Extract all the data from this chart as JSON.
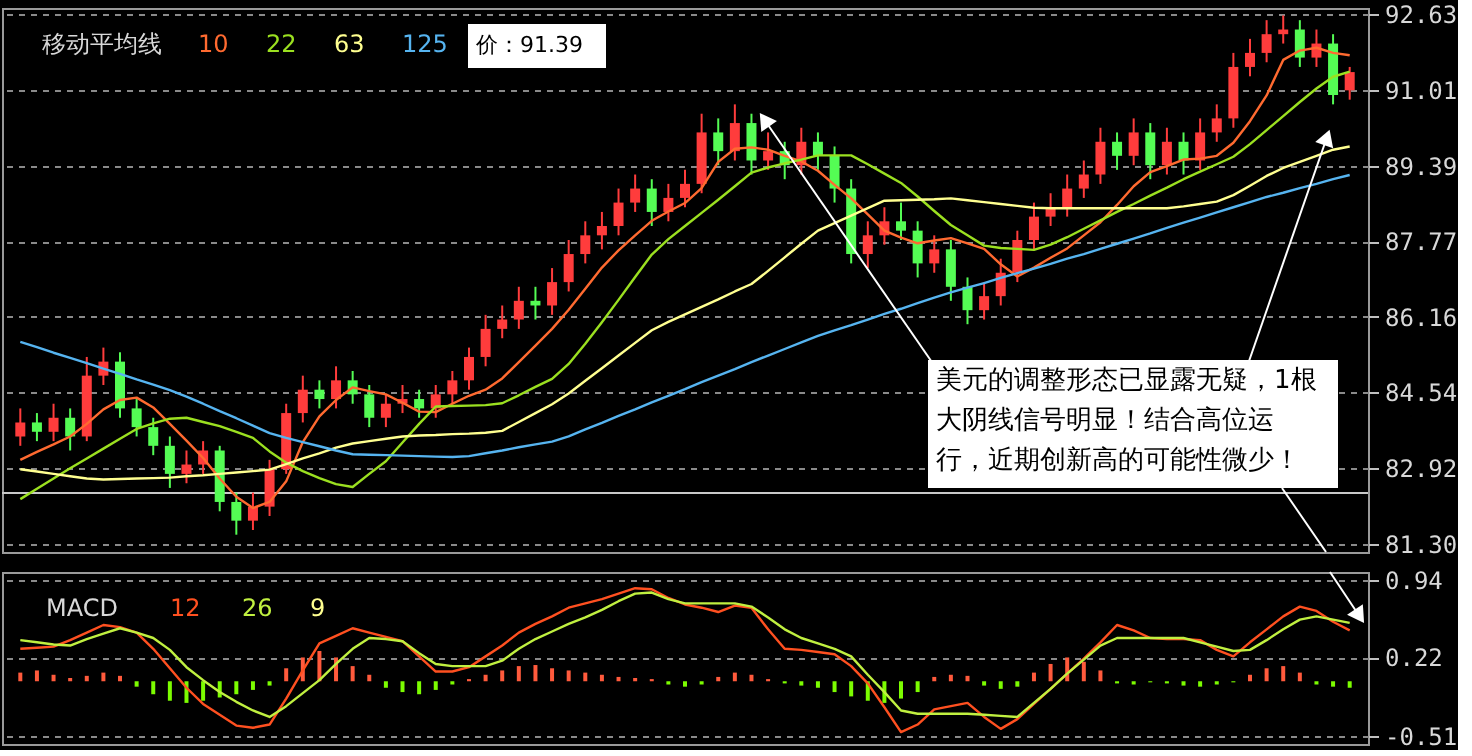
{
  "chart_data": [
    {
      "type": "candlestick",
      "legend_title": "移动平均线",
      "grid": "y",
      "tick_labels": "y",
      "annotations": [
        "价：91.39",
        "美元的调整形态已显露无疑，1根大阴线信号明显！结合高位运行，近期创新高的可能性微少！"
      ],
      "categories": [
        null,
        null,
        null,
        null,
        null,
        null,
        null,
        null,
        null,
        null,
        null,
        null,
        null,
        null,
        null,
        null,
        null,
        null,
        null,
        null,
        null,
        null,
        null,
        null,
        null,
        null,
        null,
        null,
        null,
        null,
        null,
        null,
        null,
        null,
        null,
        null,
        null,
        null,
        null,
        null,
        null,
        null,
        null,
        null,
        null,
        null,
        null,
        null,
        null,
        null,
        null,
        null,
        null,
        null,
        null,
        null,
        null,
        null,
        null,
        null,
        null,
        null,
        null,
        null,
        null,
        null,
        null,
        null,
        null,
        null,
        null,
        null,
        null,
        null,
        null,
        null,
        null,
        null,
        null,
        null,
        null
      ],
      "ylim": [
        81.13,
        92.76
      ],
      "yticks": [
        {
          "value": 81.3,
          "label": "81.30"
        },
        82.92,
        84.54,
        86.16,
        87.77,
        89.39,
        91.01,
        92.63
      ],
      "ref_lines": [
        {
          "axis": "y",
          "value": 82.39,
          "color": "#c8c8c8"
        }
      ],
      "ohlc": [
        [
          83.6,
          84.2,
          83.4,
          83.9
        ],
        [
          83.9,
          84.1,
          83.5,
          83.7
        ],
        [
          83.7,
          84.3,
          83.5,
          84.0
        ],
        [
          84.0,
          84.2,
          83.3,
          83.6
        ],
        [
          83.6,
          85.3,
          83.5,
          84.9
        ],
        [
          84.9,
          85.5,
          84.7,
          85.2
        ],
        [
          85.2,
          85.4,
          84.0,
          84.2
        ],
        [
          84.2,
          84.4,
          83.6,
          83.8
        ],
        [
          83.8,
          84.0,
          83.2,
          83.4
        ],
        [
          83.4,
          83.6,
          82.5,
          82.8
        ],
        [
          82.8,
          83.3,
          82.6,
          83.0
        ],
        [
          83.0,
          83.5,
          82.8,
          83.3
        ],
        [
          83.3,
          83.4,
          82.0,
          82.2
        ],
        [
          82.2,
          82.4,
          81.5,
          81.8
        ],
        [
          81.8,
          82.4,
          81.6,
          82.1
        ],
        [
          82.1,
          83.1,
          81.9,
          82.9
        ],
        [
          82.9,
          84.3,
          82.8,
          84.1
        ],
        [
          84.1,
          84.9,
          83.9,
          84.6
        ],
        [
          84.6,
          84.8,
          84.2,
          84.4
        ],
        [
          84.4,
          85.1,
          84.2,
          84.8
        ],
        [
          84.8,
          85.0,
          84.3,
          84.5
        ],
        [
          84.5,
          84.7,
          83.8,
          84.0
        ],
        [
          84.0,
          84.5,
          83.8,
          84.3
        ],
        [
          84.3,
          84.7,
          84.1,
          84.4
        ],
        [
          84.4,
          84.6,
          84.0,
          84.2
        ],
        [
          84.2,
          84.7,
          84.0,
          84.5
        ],
        [
          84.5,
          85.0,
          84.3,
          84.8
        ],
        [
          84.8,
          85.5,
          84.6,
          85.3
        ],
        [
          85.3,
          86.2,
          85.1,
          85.9
        ],
        [
          85.9,
          86.4,
          85.7,
          86.1
        ],
        [
          86.1,
          86.8,
          85.9,
          86.5
        ],
        [
          86.5,
          86.8,
          86.1,
          86.4
        ],
        [
          86.4,
          87.2,
          86.2,
          86.9
        ],
        [
          86.9,
          87.8,
          86.7,
          87.5
        ],
        [
          87.5,
          88.2,
          87.3,
          87.9
        ],
        [
          87.9,
          88.4,
          87.6,
          88.1
        ],
        [
          88.1,
          88.9,
          87.9,
          88.6
        ],
        [
          88.6,
          89.2,
          88.4,
          88.9
        ],
        [
          88.9,
          89.1,
          88.1,
          88.4
        ],
        [
          88.4,
          89.0,
          88.2,
          88.7
        ],
        [
          88.7,
          89.3,
          88.5,
          89.0
        ],
        [
          89.0,
          90.5,
          88.8,
          90.1
        ],
        [
          90.1,
          90.4,
          89.4,
          89.7
        ],
        [
          89.7,
          90.7,
          89.5,
          90.3
        ],
        [
          90.3,
          90.5,
          89.2,
          89.5
        ],
        [
          89.5,
          90.1,
          89.3,
          89.7
        ],
        [
          89.7,
          89.9,
          89.1,
          89.4
        ],
        [
          89.4,
          90.2,
          89.2,
          89.9
        ],
        [
          89.9,
          90.1,
          89.3,
          89.6
        ],
        [
          89.6,
          89.8,
          88.6,
          88.9
        ],
        [
          88.9,
          89.1,
          87.3,
          87.5
        ],
        [
          87.5,
          88.2,
          87.2,
          87.9
        ],
        [
          87.9,
          88.5,
          87.7,
          88.2
        ],
        [
          88.2,
          88.6,
          87.8,
          88.0
        ],
        [
          88.0,
          88.2,
          87.0,
          87.3
        ],
        [
          87.3,
          87.9,
          87.1,
          87.6
        ],
        [
          87.6,
          87.8,
          86.5,
          86.8
        ],
        [
          86.8,
          87.0,
          86.0,
          86.3
        ],
        [
          86.3,
          86.9,
          86.1,
          86.6
        ],
        [
          86.6,
          87.4,
          86.4,
          87.1
        ],
        [
          87.1,
          88.0,
          86.9,
          87.8
        ],
        [
          87.8,
          88.6,
          87.6,
          88.3
        ],
        [
          88.3,
          88.8,
          88.1,
          88.5
        ],
        [
          88.5,
          89.2,
          88.3,
          88.9
        ],
        [
          88.9,
          89.5,
          88.7,
          89.2
        ],
        [
          89.2,
          90.2,
          89.0,
          89.9
        ],
        [
          89.9,
          90.1,
          89.3,
          89.6
        ],
        [
          89.6,
          90.4,
          89.4,
          90.1
        ],
        [
          90.1,
          90.3,
          89.1,
          89.4
        ],
        [
          89.4,
          90.2,
          89.2,
          89.9
        ],
        [
          89.9,
          90.1,
          89.2,
          89.5
        ],
        [
          89.5,
          90.4,
          89.3,
          90.1
        ],
        [
          90.1,
          90.7,
          89.9,
          90.4
        ],
        [
          90.4,
          91.8,
          90.2,
          91.5
        ],
        [
          91.5,
          92.1,
          91.3,
          91.8
        ],
        [
          91.8,
          92.5,
          91.6,
          92.2
        ],
        [
          92.2,
          92.6,
          92.0,
          92.3
        ],
        [
          92.3,
          92.5,
          91.5,
          91.7
        ],
        [
          91.7,
          92.3,
          91.5,
          92.0
        ],
        [
          92.0,
          92.2,
          90.7,
          90.9
        ],
        [
          91.0,
          91.5,
          90.8,
          91.39
        ]
      ],
      "colors": [
        "#ff3c3c",
        "#54fc54",
        "#ff3c3c",
        "#54fc54",
        "#ff3c3c",
        "#ff3c3c",
        "#54fc54",
        "#54fc54",
        "#54fc54",
        "#54fc54",
        "#ff3c3c",
        "#ff3c3c",
        "#54fc54",
        "#54fc54",
        "#ff3c3c",
        "#ff3c3c",
        "#ff3c3c",
        "#ff3c3c",
        "#54fc54",
        "#ff3c3c",
        "#54fc54",
        "#54fc54",
        "#ff3c3c",
        "#ff3c3c",
        "#54fc54",
        "#ff3c3c",
        "#ff3c3c",
        "#ff3c3c",
        "#ff3c3c",
        "#ff3c3c",
        "#ff3c3c",
        "#54fc54",
        "#ff3c3c",
        "#ff3c3c",
        "#ff3c3c",
        "#ff3c3c",
        "#ff3c3c",
        "#ff3c3c",
        "#54fc54",
        "#ff3c3c",
        "#ff3c3c",
        "#ff3c3c",
        "#54fc54",
        "#ff3c3c",
        "#54fc54",
        "#ff3c3c",
        "#54fc54",
        "#ff3c3c",
        "#54fc54",
        "#54fc54",
        "#54fc54",
        "#ff3c3c",
        "#ff3c3c",
        "#54fc54",
        "#54fc54",
        "#ff3c3c",
        "#54fc54",
        "#54fc54",
        "#ff3c3c",
        "#ff3c3c",
        "#ff3c3c",
        "#ff3c3c",
        "#ff3c3c",
        "#ff3c3c",
        "#ff3c3c",
        "#ff3c3c",
        "#54fc54",
        "#ff3c3c",
        "#54fc54",
        "#ff3c3c",
        "#54fc54",
        "#ff3c3c",
        "#ff3c3c",
        "#ff3c3c",
        "#ff3c3c",
        "#ff3c3c",
        "#ff3c3c",
        "#54fc54",
        "#ff3c3c",
        "#54fc54",
        "#ff3c3c"
      ],
      "series": [
        {
          "name": "10",
          "type": "line",
          "color": "#ff6a30",
          "values": [
            83.1,
            83.27,
            83.43,
            83.6,
            83.87,
            84.18,
            84.38,
            84.43,
            84.22,
            83.87,
            83.51,
            83.14,
            82.7,
            82.31,
            82.07,
            82.2,
            82.64,
            83.48,
            84.03,
            84.38,
            84.65,
            84.57,
            84.5,
            84.32,
            84.13,
            84.12,
            84.3,
            84.47,
            84.6,
            84.84,
            85.19,
            85.54,
            85.9,
            86.31,
            86.76,
            87.21,
            87.58,
            87.9,
            88.21,
            88.41,
            88.59,
            88.91,
            89.47,
            89.75,
            89.78,
            89.73,
            89.6,
            89.48,
            89.28,
            88.98,
            88.69,
            88.35,
            88.0,
            87.85,
            87.73,
            87.79,
            87.84,
            87.73,
            87.61,
            87.28,
            87.02,
            87.21,
            87.42,
            87.62,
            87.9,
            88.18,
            88.55,
            88.95,
            89.25,
            89.38,
            89.52,
            89.54,
            89.6,
            89.88,
            90.34,
            90.89,
            91.65,
            91.85,
            91.91,
            91.8,
            91.75
          ]
        },
        {
          "name": "22",
          "type": "line",
          "color": "#9be020",
          "values": [
            82.26,
            82.48,
            82.7,
            82.92,
            83.13,
            83.34,
            83.55,
            83.76,
            83.88,
            83.98,
            84.0,
            83.91,
            83.82,
            83.7,
            83.57,
            83.28,
            83.04,
            82.86,
            82.71,
            82.58,
            82.52,
            82.8,
            83.07,
            83.47,
            83.87,
            84.24,
            84.25,
            84.26,
            84.27,
            84.31,
            84.48,
            84.66,
            84.83,
            85.15,
            85.58,
            86.04,
            86.52,
            87.01,
            87.49,
            87.82,
            88.1,
            88.38,
            88.66,
            88.95,
            89.24,
            89.35,
            89.44,
            89.52,
            89.61,
            89.61,
            89.61,
            89.42,
            89.22,
            89.02,
            88.73,
            88.42,
            88.12,
            87.9,
            87.68,
            87.63,
            87.61,
            87.59,
            87.7,
            87.86,
            88.04,
            88.22,
            88.4,
            88.57,
            88.75,
            88.92,
            89.1,
            89.26,
            89.42,
            89.58,
            89.85,
            90.15,
            90.45,
            90.75,
            91.04,
            91.29,
            91.4
          ]
        },
        {
          "name": "63",
          "type": "line",
          "color": "#ffff90",
          "values": [
            82.9,
            82.85,
            82.8,
            82.75,
            82.7,
            82.68,
            82.69,
            82.7,
            82.71,
            82.72,
            82.75,
            82.77,
            82.8,
            82.83,
            82.86,
            82.89,
            83.01,
            83.13,
            83.24,
            83.36,
            83.45,
            83.5,
            83.55,
            83.6,
            83.62,
            83.63,
            83.65,
            83.66,
            83.68,
            83.72,
            83.91,
            84.1,
            84.29,
            84.52,
            84.79,
            85.06,
            85.33,
            85.6,
            85.87,
            86.05,
            86.21,
            86.37,
            86.53,
            86.7,
            86.86,
            87.14,
            87.43,
            87.72,
            88.0,
            88.16,
            88.32,
            88.48,
            88.64,
            88.65,
            88.66,
            88.67,
            88.69,
            88.65,
            88.61,
            88.57,
            88.53,
            88.49,
            88.48,
            88.48,
            88.48,
            88.48,
            88.48,
            88.48,
            88.48,
            88.48,
            88.52,
            88.57,
            88.62,
            88.76,
            88.96,
            89.17,
            89.34,
            89.47,
            89.6,
            89.73,
            89.8
          ]
        },
        {
          "name": "125",
          "type": "line",
          "color": "#56b4f0",
          "values": [
            85.62,
            85.51,
            85.39,
            85.28,
            85.17,
            85.05,
            84.94,
            84.82,
            84.71,
            84.59,
            84.45,
            84.3,
            84.14,
            83.99,
            83.83,
            83.67,
            83.57,
            83.48,
            83.39,
            83.3,
            83.22,
            83.21,
            83.2,
            83.19,
            83.18,
            83.17,
            83.16,
            83.18,
            83.24,
            83.3,
            83.37,
            83.43,
            83.49,
            83.6,
            83.75,
            83.89,
            84.04,
            84.18,
            84.33,
            84.47,
            84.61,
            84.76,
            84.9,
            85.04,
            85.19,
            85.33,
            85.47,
            85.61,
            85.75,
            85.87,
            85.98,
            86.1,
            86.22,
            86.33,
            86.45,
            86.57,
            86.68,
            86.78,
            86.88,
            86.99,
            87.09,
            87.19,
            87.29,
            87.4,
            87.5,
            87.61,
            87.72,
            87.83,
            87.94,
            88.06,
            88.17,
            88.28,
            88.39,
            88.5,
            88.61,
            88.72,
            88.81,
            88.91,
            89.0,
            89.1,
            89.19
          ]
        }
      ]
    },
    {
      "type": "line",
      "legend_title": "MACD",
      "grid": "y",
      "tick_labels": "y",
      "annotations": [
        "9"
      ],
      "categories": [
        null,
        null,
        null,
        null,
        null,
        null,
        null,
        null,
        null,
        null,
        null,
        null,
        null,
        null,
        null,
        null,
        null,
        null,
        null,
        null,
        null,
        null,
        null,
        null,
        null,
        null,
        null,
        null,
        null,
        null,
        null,
        null,
        null,
        null,
        null,
        null,
        null,
        null,
        null,
        null,
        null,
        null,
        null,
        null,
        null,
        null,
        null,
        null,
        null,
        null,
        null,
        null,
        null,
        null,
        null,
        null,
        null,
        null,
        null,
        null,
        null,
        null,
        null,
        null,
        null,
        null,
        null,
        null,
        null,
        null,
        null,
        null,
        null,
        null,
        null,
        null,
        null,
        null,
        null,
        null,
        null
      ],
      "ylim": [
        -0.58,
        1.01
      ],
      "yticks": [
        -0.51,
        0.22,
        0.94
      ],
      "series": [
        {
          "name": "12",
          "type": "line",
          "color": "#ff5020",
          "values": [
            0.3,
            0.31,
            0.32,
            0.38,
            0.45,
            0.52,
            0.5,
            0.45,
            0.3,
            0.12,
            -0.06,
            -0.21,
            -0.31,
            -0.41,
            -0.43,
            -0.4,
            -0.16,
            0.1,
            0.35,
            0.42,
            0.49,
            0.45,
            0.41,
            0.37,
            0.23,
            0.09,
            0.09,
            0.13,
            0.23,
            0.33,
            0.45,
            0.53,
            0.6,
            0.68,
            0.72,
            0.76,
            0.81,
            0.86,
            0.85,
            0.77,
            0.71,
            0.68,
            0.64,
            0.7,
            0.68,
            0.48,
            0.3,
            0.29,
            0.27,
            0.25,
            0.14,
            -0.02,
            -0.24,
            -0.47,
            -0.4,
            -0.26,
            -0.23,
            -0.2,
            -0.33,
            -0.44,
            -0.35,
            -0.21,
            -0.07,
            0.07,
            0.21,
            0.36,
            0.52,
            0.47,
            0.4,
            0.39,
            0.39,
            0.38,
            0.29,
            0.23,
            0.36,
            0.48,
            0.6,
            0.69,
            0.65,
            0.55,
            0.47
          ]
        },
        {
          "name": "26",
          "type": "line",
          "color": "#c0f040",
          "values": [
            0.38,
            0.36,
            0.34,
            0.33,
            0.39,
            0.44,
            0.49,
            0.45,
            0.4,
            0.29,
            0.13,
            0.01,
            -0.1,
            -0.19,
            -0.27,
            -0.33,
            -0.23,
            -0.11,
            0.01,
            0.16,
            0.3,
            0.4,
            0.39,
            0.37,
            0.26,
            0.16,
            0.14,
            0.14,
            0.14,
            0.19,
            0.3,
            0.39,
            0.46,
            0.53,
            0.59,
            0.66,
            0.74,
            0.81,
            0.82,
            0.76,
            0.72,
            0.72,
            0.72,
            0.72,
            0.69,
            0.59,
            0.48,
            0.4,
            0.35,
            0.3,
            0.23,
            0.06,
            -0.1,
            -0.27,
            -0.3,
            -0.3,
            -0.3,
            -0.3,
            -0.31,
            -0.32,
            -0.33,
            -0.2,
            -0.07,
            0.07,
            0.2,
            0.33,
            0.4,
            0.4,
            0.4,
            0.4,
            0.4,
            0.36,
            0.32,
            0.28,
            0.29,
            0.38,
            0.48,
            0.57,
            0.6,
            0.57,
            0.54
          ]
        },
        {
          "type": "bar",
          "values": [
            0.08,
            0.1,
            0.06,
            0.03,
            0.05,
            0.08,
            0.05,
            -0.05,
            -0.12,
            -0.18,
            -0.2,
            -0.18,
            -0.15,
            -0.12,
            -0.08,
            -0.04,
            0.12,
            0.22,
            0.28,
            0.22,
            0.14,
            0.06,
            -0.06,
            -0.1,
            -0.12,
            -0.08,
            -0.03,
            0.02,
            0.06,
            0.1,
            0.14,
            0.15,
            0.12,
            0.1,
            0.08,
            0.06,
            0.04,
            0.03,
            0.02,
            -0.03,
            -0.05,
            -0.03,
            0.04,
            0.08,
            0.06,
            0.02,
            -0.02,
            -0.04,
            -0.06,
            -0.1,
            -0.14,
            -0.18,
            -0.2,
            -0.16,
            -0.1,
            0.04,
            0.06,
            0.05,
            -0.04,
            -0.07,
            -0.05,
            0.08,
            0.16,
            0.22,
            0.18,
            0.1,
            -0.02,
            -0.03,
            -0.01,
            -0.02,
            -0.04,
            -0.05,
            -0.03,
            -0.01,
            0.06,
            0.12,
            0.14,
            0.08,
            -0.03,
            -0.05,
            -0.06
          ],
          "colors": [
            "#ff5a3c",
            "#ff5a3c",
            "#ff5a3c",
            "#ff5a3c",
            "#ff5a3c",
            "#ff5a3c",
            "#ff5a3c",
            "#7cfc00",
            "#7cfc00",
            "#7cfc00",
            "#7cfc00",
            "#7cfc00",
            "#7cfc00",
            "#7cfc00",
            "#7cfc00",
            "#7cfc00",
            "#ff5a3c",
            "#ff5a3c",
            "#ff5a3c",
            "#ff5a3c",
            "#ff5a3c",
            "#ff5a3c",
            "#7cfc00",
            "#7cfc00",
            "#7cfc00",
            "#7cfc00",
            "#7cfc00",
            "#ff5a3c",
            "#ff5a3c",
            "#ff5a3c",
            "#ff5a3c",
            "#ff5a3c",
            "#ff5a3c",
            "#ff5a3c",
            "#ff5a3c",
            "#ff5a3c",
            "#ff5a3c",
            "#ff5a3c",
            "#ff5a3c",
            "#7cfc00",
            "#7cfc00",
            "#7cfc00",
            "#ff5a3c",
            "#ff5a3c",
            "#ff5a3c",
            "#ff5a3c",
            "#7cfc00",
            "#7cfc00",
            "#7cfc00",
            "#7cfc00",
            "#7cfc00",
            "#7cfc00",
            "#7cfc00",
            "#7cfc00",
            "#7cfc00",
            "#ff5a3c",
            "#ff5a3c",
            "#ff5a3c",
            "#7cfc00",
            "#7cfc00",
            "#7cfc00",
            "#ff5a3c",
            "#ff5a3c",
            "#ff5a3c",
            "#ff5a3c",
            "#ff5a3c",
            "#7cfc00",
            "#7cfc00",
            "#7cfc00",
            "#7cfc00",
            "#7cfc00",
            "#7cfc00",
            "#7cfc00",
            "#7cfc00",
            "#ff5a3c",
            "#ff5a3c",
            "#ff5a3c",
            "#ff5a3c",
            "#7cfc00",
            "#7cfc00",
            "#7cfc00"
          ]
        }
      ]
    }
  ]
}
